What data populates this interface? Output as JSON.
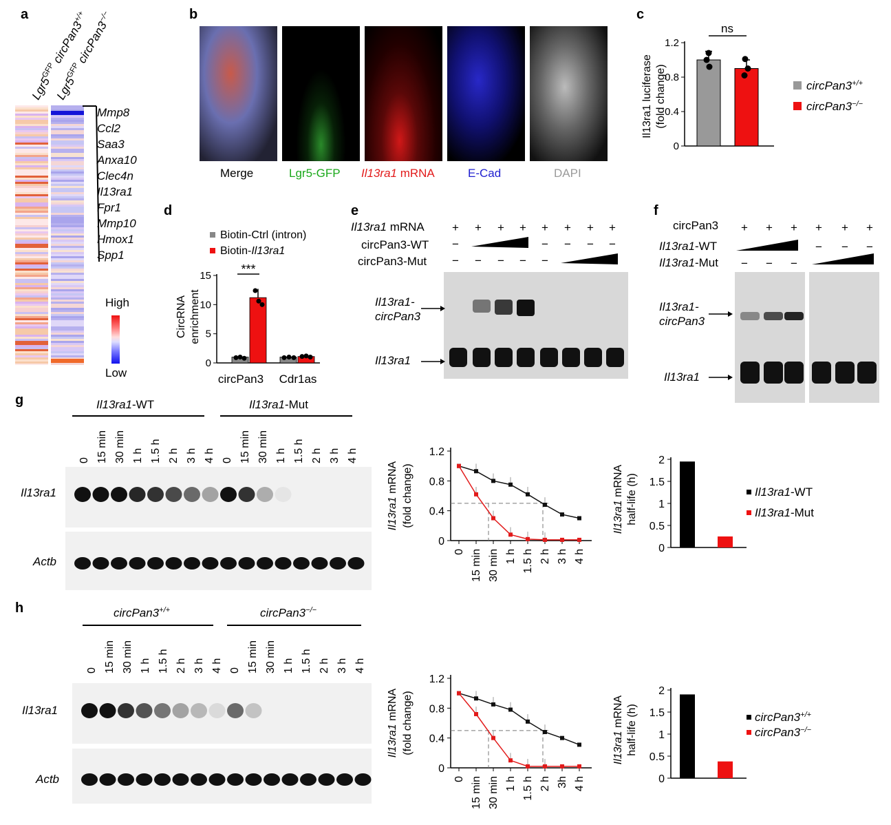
{
  "labels": {
    "a": "a",
    "b": "b",
    "c": "c",
    "d": "d",
    "e": "e",
    "f": "f",
    "g": "g",
    "h": "h"
  },
  "panel_a": {
    "col1": "Lgr5GFP circPan3+/+",
    "col1_base": "Lgr5",
    "col1_sup": "GFP",
    "col1_gene": "circPan3",
    "col1_gsup": "+/+",
    "col2_base": "Lgr5",
    "col2_sup": "GFP",
    "col2_gene": "circPan3",
    "col2_gsup": "−/−",
    "genes": [
      "Mmp8",
      "Ccl2",
      "Saa3",
      "Anxa10",
      "Clec4n",
      "Il13ra1",
      "Fpr1",
      "Mmp10",
      "Hmox1",
      "Spp1"
    ],
    "legend_high": "High",
    "legend_low": "Low"
  },
  "panel_b": {
    "captions": [
      "Merge",
      "Lgr5-GFP",
      "Il13ra1",
      "mRNA",
      "E-Cad",
      "DAPI"
    ],
    "colors": {
      "merge": "#000000",
      "gfp": "#1aa81a",
      "il": "#e21b1b",
      "ecad": "#2020d0",
      "dapi": "#9a9a9a"
    }
  },
  "panel_c": {
    "ylabel1": "Il13ra1 luciferase",
    "ylabel2": "(fold change)",
    "ns": "ns",
    "legend": [
      {
        "name": "circPan3",
        "sup": "+/+",
        "color": "#999999"
      },
      {
        "name": "circPan3",
        "sup": "−/−",
        "color": "#ee1111"
      }
    ],
    "ticks": [
      "0",
      "0.4",
      "0.8",
      "1.2"
    ]
  },
  "panel_d": {
    "legend1": "Biotin-Ctrl (intron)",
    "legend2_pre": "Biotin-",
    "legend2_gene": "Il13ra1",
    "ylabel1": "CircRNA",
    "ylabel2": "enrichment",
    "sig": "***",
    "categories": [
      "circPan3",
      "Cdr1as"
    ],
    "ticks": [
      "0",
      "5",
      "10",
      "15"
    ]
  },
  "panel_e": {
    "row1_gene": "Il13ra1",
    "row1_rest": " mRNA",
    "row2": "circPan3-WT",
    "row3": "circPan3-Mut",
    "band_upper1": "Il13ra1-",
    "band_upper2": "circPan3",
    "band_lower": "Il13ra1",
    "plus": "+",
    "minus": "−"
  },
  "panel_f": {
    "row1": "circPan3",
    "row2_gene": "Il13ra1",
    "row2_rest": "-WT",
    "row3_gene": "Il13ra1",
    "row3_rest": "-Mut",
    "band_upper1": "Il13ra1-",
    "band_upper2": "circPan3",
    "band_lower": "Il13ra1"
  },
  "panel_g": {
    "group1_gene": "Il13ra1",
    "group1_rest": "-WT",
    "group2_gene": "Il13ra1",
    "group2_rest": "-Mut",
    "timepoints": [
      "0",
      "15 min",
      "30 min",
      "1 h",
      "1.5 h",
      "2 h",
      "3 h",
      "4 h"
    ],
    "row1": "Il13ra1",
    "row2": "Actb",
    "legend": [
      {
        "gene": "Il13ra1",
        "rest": "-WT"
      },
      {
        "gene": "Il13ra1",
        "rest": "-Mut"
      }
    ],
    "ylabel_gene": "Il13ra1",
    "ylabel_rest": " mRNA",
    "ylabel2": "(fold change)",
    "hl_gene": "Il13ra1",
    "hl_rest": " mRNA",
    "hl2": "half-life (h)"
  },
  "panel_h": {
    "group1": "circPan3",
    "group1_sup": "+/+",
    "group2": "circPan3",
    "group2_sup": "−/−",
    "timepoints": [
      "0",
      "15 min",
      "30 min",
      "1 h",
      "1.5 h",
      "2 h",
      "3 h",
      "4 h"
    ],
    "timepoints_line": [
      "0",
      "15 min",
      "30 min",
      "1 h",
      "1.5 h",
      "2 h",
      "3h",
      "4 h"
    ],
    "row1": "Il13ra1",
    "row2": "Actb",
    "legend": [
      {
        "name": "circPan3",
        "sup": "+/+"
      },
      {
        "name": "circPan3",
        "sup": "−/−"
      }
    ]
  },
  "chart_data": [
    {
      "type": "bar",
      "panel": "c",
      "categories": [
        "circPan3+/+",
        "circPan3−/−"
      ],
      "values": [
        1.0,
        0.9
      ],
      "colors": [
        "#999999",
        "#ee1111"
      ],
      "ylim": [
        0,
        1.2
      ]
    },
    {
      "type": "bar",
      "panel": "d",
      "categories": [
        "circPan3",
        "Cdr1as"
      ],
      "series": [
        {
          "name": "Biotin-Ctrl (intron)",
          "values": [
            1.0,
            1.0
          ],
          "color": "#888888"
        },
        {
          "name": "Biotin-Il13ra1",
          "values": [
            11.2,
            1.1
          ],
          "color": "#ee1111"
        }
      ],
      "ylim": [
        0,
        15
      ]
    },
    {
      "type": "line",
      "panel": "g",
      "x": [
        "0",
        "15 min",
        "30 min",
        "1 h",
        "1.5 h",
        "2 h",
        "3 h",
        "4 h"
      ],
      "series": [
        {
          "name": "Il13ra1-WT",
          "values": [
            1.0,
            0.93,
            0.8,
            0.75,
            0.62,
            0.48,
            0.35,
            0.3
          ],
          "color": "#111111"
        },
        {
          "name": "Il13ra1-Mut",
          "values": [
            1.0,
            0.62,
            0.3,
            0.08,
            0.02,
            0.01,
            0.01,
            0.01
          ],
          "color": "#e21b1b"
        }
      ],
      "ylim": [
        0,
        1.2
      ],
      "ticks": [
        "0",
        "0.4",
        "0.8",
        "1.2"
      ]
    },
    {
      "type": "bar",
      "panel": "g-halflife",
      "categories": [
        "Il13ra1-WT",
        "Il13ra1-Mut"
      ],
      "values": [
        1.95,
        0.25
      ],
      "colors": [
        "#000000",
        "#ee1111"
      ],
      "ylim": [
        0,
        2
      ],
      "ticks": [
        "0",
        "0.5",
        "1",
        "1.5",
        "2"
      ]
    },
    {
      "type": "line",
      "panel": "h",
      "x": [
        "0",
        "15 min",
        "30 min",
        "1 h",
        "1.5 h",
        "2 h",
        "3h",
        "4 h"
      ],
      "series": [
        {
          "name": "circPan3+/+",
          "values": [
            1.0,
            0.93,
            0.85,
            0.78,
            0.62,
            0.48,
            0.4,
            0.31
          ],
          "color": "#111111"
        },
        {
          "name": "circPan3−/−",
          "values": [
            1.0,
            0.72,
            0.4,
            0.1,
            0.02,
            0.02,
            0.02,
            0.02
          ],
          "color": "#e21b1b"
        }
      ],
      "ylim": [
        0,
        1.2
      ],
      "ticks": [
        "0",
        "0.4",
        "0.8",
        "1.2"
      ]
    },
    {
      "type": "bar",
      "panel": "h-halflife",
      "categories": [
        "circPan3+/+",
        "circPan3−/−"
      ],
      "values": [
        1.9,
        0.38
      ],
      "colors": [
        "#000000",
        "#ee1111"
      ],
      "ylim": [
        0,
        2
      ],
      "ticks": [
        "0",
        "0.5",
        "1",
        "1.5",
        "2"
      ]
    }
  ]
}
